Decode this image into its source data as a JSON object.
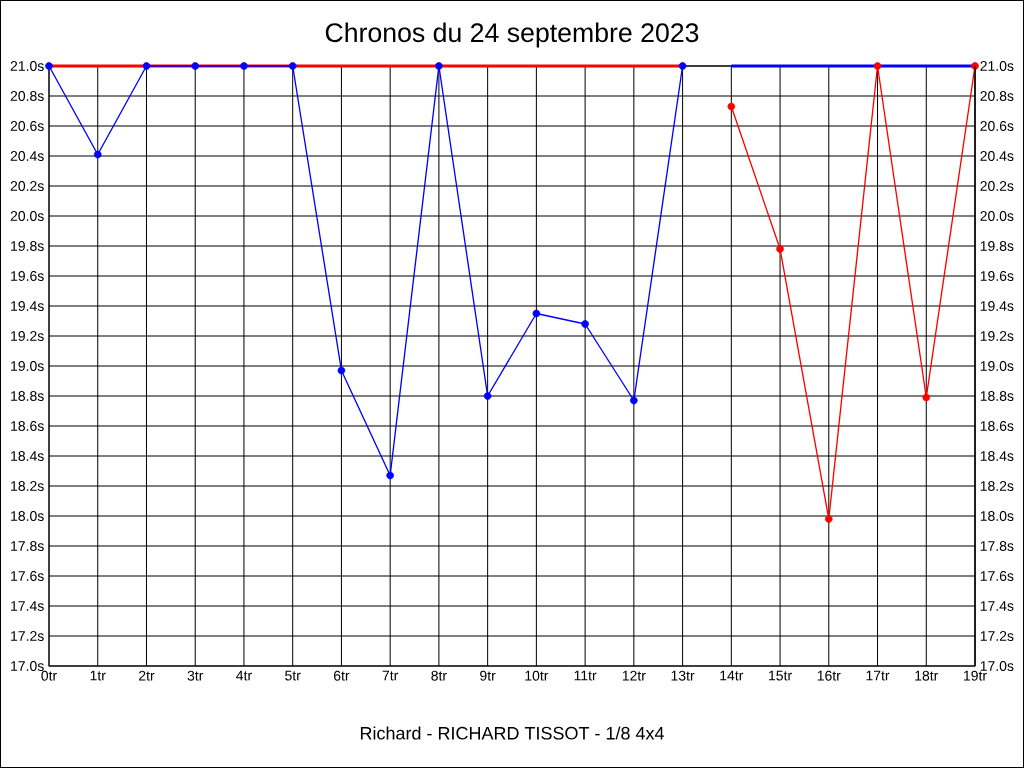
{
  "chart_data": {
    "type": "line",
    "title": "Chronos du 24 septembre 2023",
    "xlabel": "Richard - RICHARD TISSOT - 1/8 4x4",
    "categories": [
      "0tr",
      "1tr",
      "2tr",
      "3tr",
      "4tr",
      "5tr",
      "6tr",
      "7tr",
      "8tr",
      "9tr",
      "10tr",
      "11tr",
      "12tr",
      "13tr",
      "14tr",
      "15tr",
      "16tr",
      "17tr",
      "18tr",
      "19tr"
    ],
    "series": [
      {
        "color": "#ff0000",
        "marker": "none",
        "values": [
          21,
          21,
          21,
          21,
          21,
          21,
          21,
          21,
          21,
          21,
          21,
          21,
          21,
          21,
          null,
          null,
          null,
          null,
          null,
          null
        ]
      },
      {
        "color": "#0000ff",
        "marker": "none",
        "values": [
          null,
          null,
          null,
          null,
          null,
          null,
          null,
          null,
          null,
          null,
          null,
          null,
          null,
          null,
          21,
          21,
          21,
          21,
          21,
          21
        ]
      },
      {
        "color": "#0000ff",
        "marker": "circle",
        "values": [
          21,
          20.41,
          21,
          21,
          21,
          21,
          18.97,
          18.27,
          21,
          18.8,
          19.35,
          19.28,
          18.77,
          21,
          null,
          null,
          null,
          null,
          null,
          null
        ]
      },
      {
        "color": "#ff0000",
        "marker": "circle",
        "values": [
          null,
          null,
          null,
          null,
          null,
          null,
          null,
          null,
          null,
          null,
          null,
          null,
          null,
          null,
          20.73,
          19.78,
          17.98,
          21,
          18.79,
          21
        ]
      }
    ],
    "ylim": [
      17,
      21
    ],
    "yticks": [
      {
        "value": 17,
        "label": "17.0s"
      },
      {
        "value": 17.2,
        "label": "17.2s"
      },
      {
        "value": 17.4,
        "label": "17.4s"
      },
      {
        "value": 17.6,
        "label": "17.6s"
      },
      {
        "value": 17.8,
        "label": "17.8s"
      },
      {
        "value": 18,
        "label": "18.0s"
      },
      {
        "value": 18.2,
        "label": "18.2s"
      },
      {
        "value": 18.4,
        "label": "18.4s"
      },
      {
        "value": 18.6,
        "label": "18.6s"
      },
      {
        "value": 18.8,
        "label": "18.8s"
      },
      {
        "value": 19,
        "label": "19.0s"
      },
      {
        "value": 19.2,
        "label": "19.2s"
      },
      {
        "value": 19.4,
        "label": "19.4s"
      },
      {
        "value": 19.6,
        "label": "19.6s"
      },
      {
        "value": 19.8,
        "label": "19.8s"
      },
      {
        "value": 20,
        "label": "20.0s"
      },
      {
        "value": 20.2,
        "label": "20.2s"
      },
      {
        "value": 20.4,
        "label": "20.4s"
      },
      {
        "value": 20.6,
        "label": "20.6s"
      },
      {
        "value": 20.8,
        "label": "20.8s"
      },
      {
        "value": 21,
        "label": "21.0s"
      }
    ],
    "y2lim": [
      17,
      21
    ],
    "y2ticks": [
      {
        "value": 17,
        "label": "17.0s"
      },
      {
        "value": 17.2,
        "label": "17.2s"
      },
      {
        "value": 17.4,
        "label": "17.4s"
      },
      {
        "value": 17.6,
        "label": "17.6s"
      },
      {
        "value": 17.8,
        "label": "17.8s"
      },
      {
        "value": 18,
        "label": "18.0s"
      },
      {
        "value": 18.2,
        "label": "18.2s"
      },
      {
        "value": 18.4,
        "label": "18.4s"
      },
      {
        "value": 18.6,
        "label": "18.6s"
      },
      {
        "value": 18.8,
        "label": "18.8s"
      },
      {
        "value": 19,
        "label": "19.0s"
      },
      {
        "value": 19.2,
        "label": "19.2s"
      },
      {
        "value": 19.4,
        "label": "19.4s"
      },
      {
        "value": 19.6,
        "label": "19.6s"
      },
      {
        "value": 19.8,
        "label": "19.8s"
      },
      {
        "value": 20,
        "label": "20.0s"
      },
      {
        "value": 20.2,
        "label": "20.2s"
      },
      {
        "value": 20.4,
        "label": "20.4s"
      },
      {
        "value": 20.6,
        "label": "20.6s"
      },
      {
        "value": 20.8,
        "label": "20.8s"
      },
      {
        "value": 21,
        "label": "21.0s"
      }
    ],
    "grid": true,
    "line_style": "solid"
  }
}
